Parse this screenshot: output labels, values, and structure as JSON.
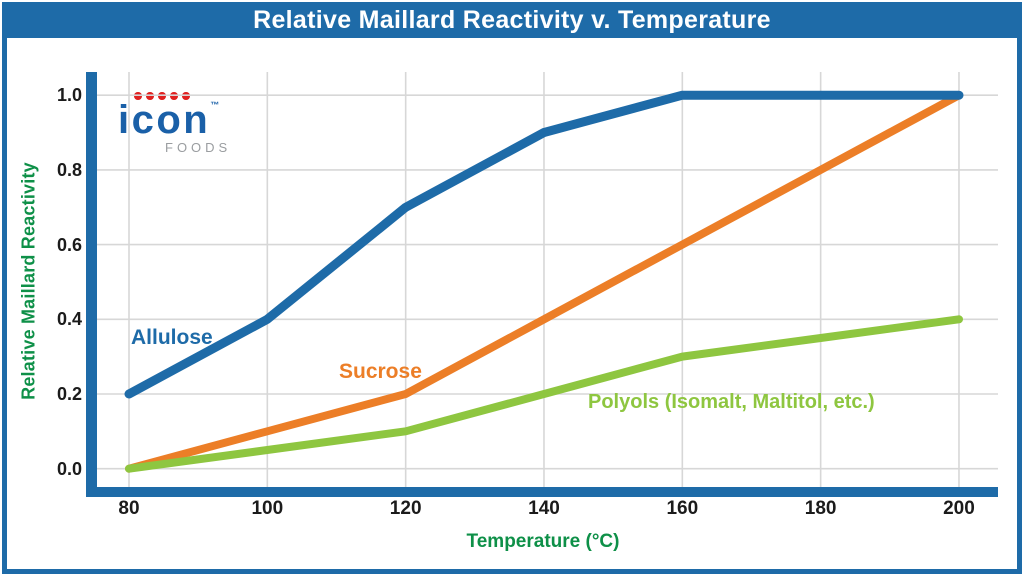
{
  "title_bar": {
    "title": "Relative Maillard Reactivity v. Temperature",
    "bg_color": "#1E6BA8",
    "text_color": "#FFFFFF"
  },
  "logo": {
    "brand": "icon",
    "tm": "™",
    "sub": "FOODS",
    "dot_count": 5,
    "blue": "#1A60A8",
    "red": "#E0201F",
    "gray": "#9A9DA0"
  },
  "chart_data": {
    "type": "line",
    "title": "Relative Maillard Reactivity v. Temperature",
    "xlabel": "Temperature (°C)",
    "ylabel": "Relative Maillard Reactivity",
    "x": [
      80,
      100,
      120,
      140,
      160,
      180,
      200
    ],
    "xtick_labels": [
      "80",
      "100",
      "120",
      "140",
      "160",
      "180",
      "200"
    ],
    "ytick_labels": [
      "0.0",
      "0.2",
      "0.4",
      "0.6",
      "0.8",
      "1.0"
    ],
    "xlim": [
      80,
      200
    ],
    "ylim": [
      0.0,
      1.0
    ],
    "grid": true,
    "legend_position": "inline-line-labels",
    "series": [
      {
        "name": "Allulose",
        "color": "#1E6BA8",
        "values": [
          0.2,
          0.4,
          0.7,
          0.9,
          1.0,
          1.0,
          1.0
        ]
      },
      {
        "name": "Sucrose",
        "color": "#EC7E27",
        "values": [
          0.0,
          0.1,
          0.2,
          0.4,
          0.6,
          0.8,
          1.0
        ]
      },
      {
        "name": "Polyols (Isomalt, Maltitol, etc.)",
        "color": "#8EC640",
        "values": [
          0.0,
          0.05,
          0.1,
          0.2,
          0.3,
          0.35,
          0.4
        ]
      }
    ]
  },
  "style_colors": {
    "frame_blue": "#1E6BA8",
    "axis_label_green": "#0E9048",
    "tick_text": "#1B1B1B",
    "grid_gray": "#D7D7D7"
  }
}
